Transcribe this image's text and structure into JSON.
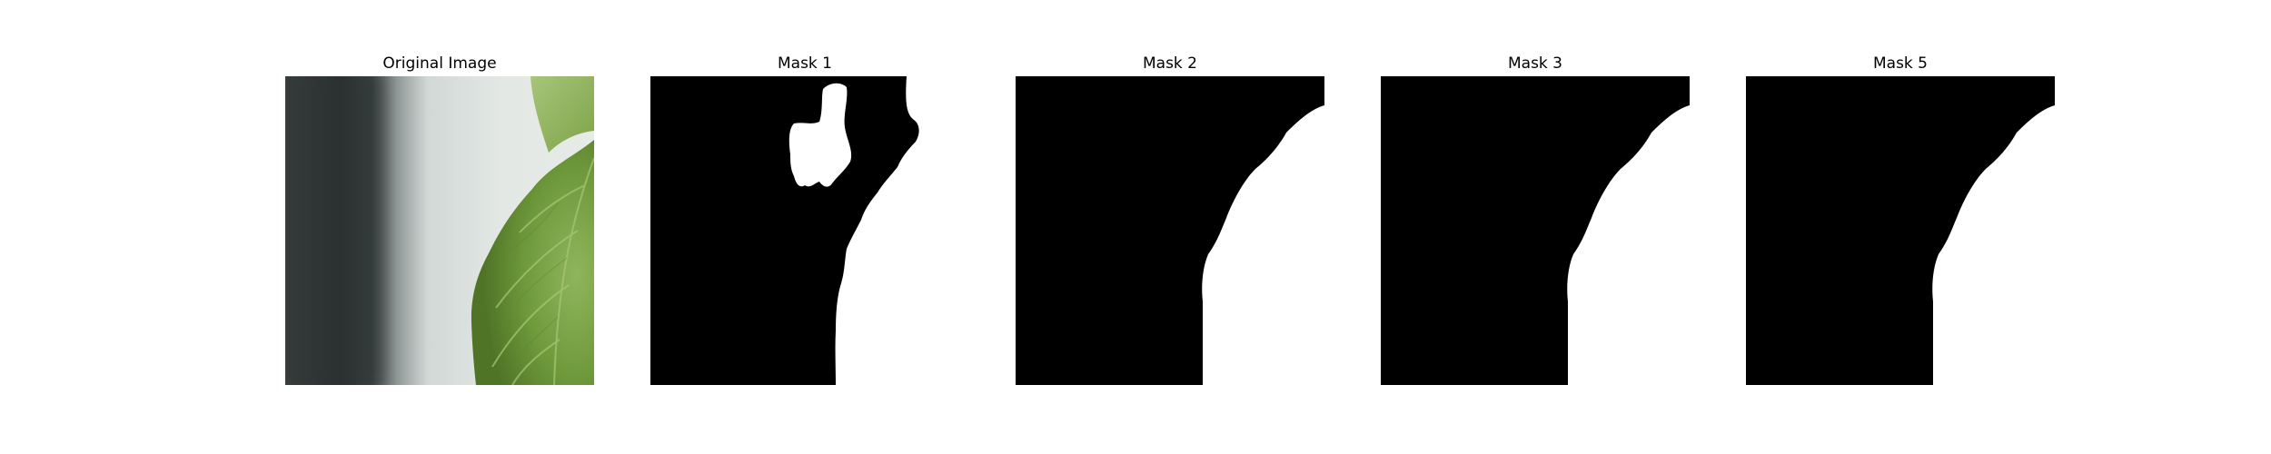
{
  "panels": [
    {
      "title": "Original Image"
    },
    {
      "title": "Mask 1"
    },
    {
      "title": "Mask 2"
    },
    {
      "title": "Mask 3"
    },
    {
      "title": "Mask 5"
    }
  ],
  "colors": {
    "mask_background": "#000000",
    "mask_foreground": "#ffffff",
    "leaf_dark": "#4f7426",
    "leaf_light": "#8fb55b",
    "backdrop_light": "#dde2df",
    "backdrop_dark": "#2b3130"
  }
}
